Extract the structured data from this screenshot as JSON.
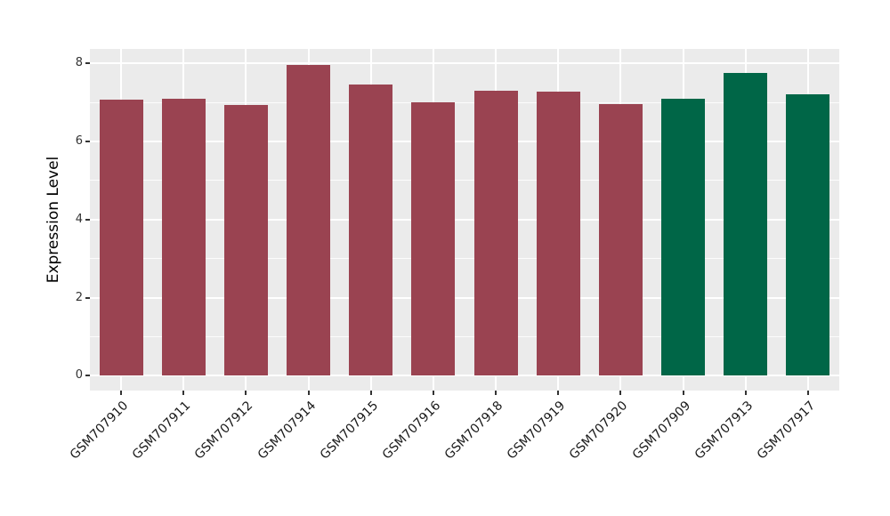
{
  "chart_data": {
    "type": "bar",
    "title": "",
    "xlabel": "",
    "ylabel": "Expression Level",
    "categories": [
      "GSM707910",
      "GSM707911",
      "GSM707912",
      "GSM707914",
      "GSM707915",
      "GSM707916",
      "GSM707918",
      "GSM707919",
      "GSM707920",
      "GSM707909",
      "GSM707913",
      "GSM707917"
    ],
    "values": [
      7.07,
      7.09,
      6.93,
      7.95,
      7.46,
      7.01,
      7.29,
      7.27,
      6.95,
      7.1,
      7.75,
      7.2
    ],
    "colors": [
      "#9a4351",
      "#9a4351",
      "#9a4351",
      "#9a4351",
      "#9a4351",
      "#9a4351",
      "#9a4351",
      "#9a4351",
      "#9a4351",
      "#006647",
      "#006647",
      "#006647"
    ],
    "group_colors": {
      "maroon_group": "#9a4351",
      "green_group": "#006647"
    },
    "yticks": [
      0,
      2,
      4,
      6,
      8
    ],
    "minor_yticks": [
      1,
      3,
      5,
      7
    ],
    "ylim": [
      -0.38,
      8.37
    ],
    "grid": "on",
    "legend": "none",
    "panel_background": "#ebebeb",
    "grid_color": "#ffffff",
    "tick_color": "#333333",
    "tick_label_color": "#333333",
    "x_label_rotation_deg": 45
  }
}
